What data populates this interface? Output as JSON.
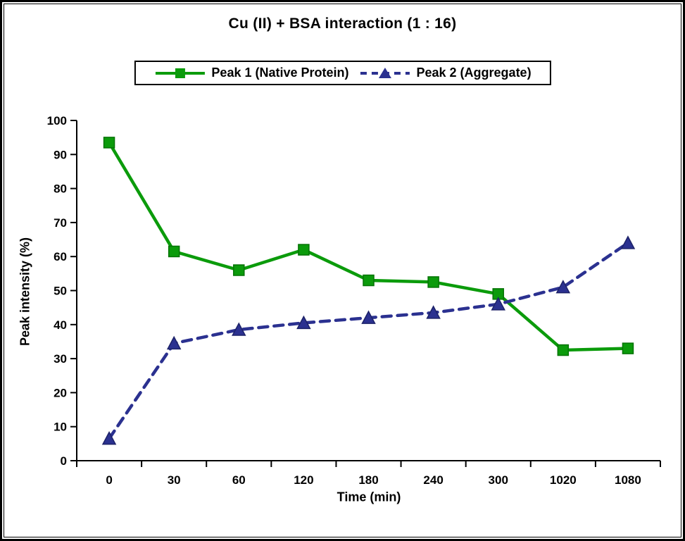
{
  "chart_data": {
    "type": "line",
    "title": "Cu (II) + BSA interaction (1 : 16)",
    "xlabel": "Time (min)",
    "ylabel": "Peak intensity (%)",
    "categories": [
      "0",
      "30",
      "60",
      "120",
      "180",
      "240",
      "300",
      "1020",
      "1080"
    ],
    "ylim": [
      0,
      100
    ],
    "yticks": [
      0,
      10,
      20,
      30,
      40,
      50,
      60,
      70,
      80,
      90,
      100
    ],
    "grid": false,
    "legend_position": "top-center",
    "series": [
      {
        "name": "Peak 1 (Native Protein)",
        "values": [
          93.5,
          61.5,
          56,
          62,
          53,
          52.5,
          49,
          32.5,
          33
        ],
        "color": "#0b9b0b",
        "edge_color": "#067306",
        "line_style": "solid",
        "marker": "square"
      },
      {
        "name": "Peak 2 (Aggregate)",
        "values": [
          6.5,
          34.5,
          38.5,
          40.5,
          42,
          43.5,
          46,
          51,
          64
        ],
        "color": "#2b3190",
        "edge_color": "#1d2268",
        "line_style": "dashed",
        "marker": "triangle"
      }
    ]
  }
}
